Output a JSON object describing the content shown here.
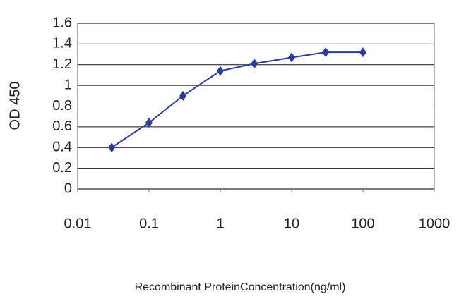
{
  "chart_data": {
    "type": "line",
    "xlabel": "Recombinant ProteinConcentration(ng/ml)",
    "ylabel": "OD 450",
    "x": [
      0.03,
      0.1,
      0.3,
      1,
      3,
      10,
      30,
      100
    ],
    "series": [
      {
        "name": "OD 450",
        "color": "#2b3a9c",
        "values": [
          0.4,
          0.64,
          0.9,
          1.14,
          1.21,
          1.27,
          1.32,
          1.32
        ]
      }
    ],
    "xlim": [
      0.01,
      1000
    ],
    "xticks": [
      0.01,
      0.1,
      1,
      10,
      100,
      1000
    ],
    "xscale": "log",
    "ylim": [
      0,
      1.6
    ],
    "yticks": [
      0,
      0.2,
      0.4,
      0.6,
      0.8,
      1,
      1.2,
      1.4,
      1.6
    ],
    "grid": true
  }
}
